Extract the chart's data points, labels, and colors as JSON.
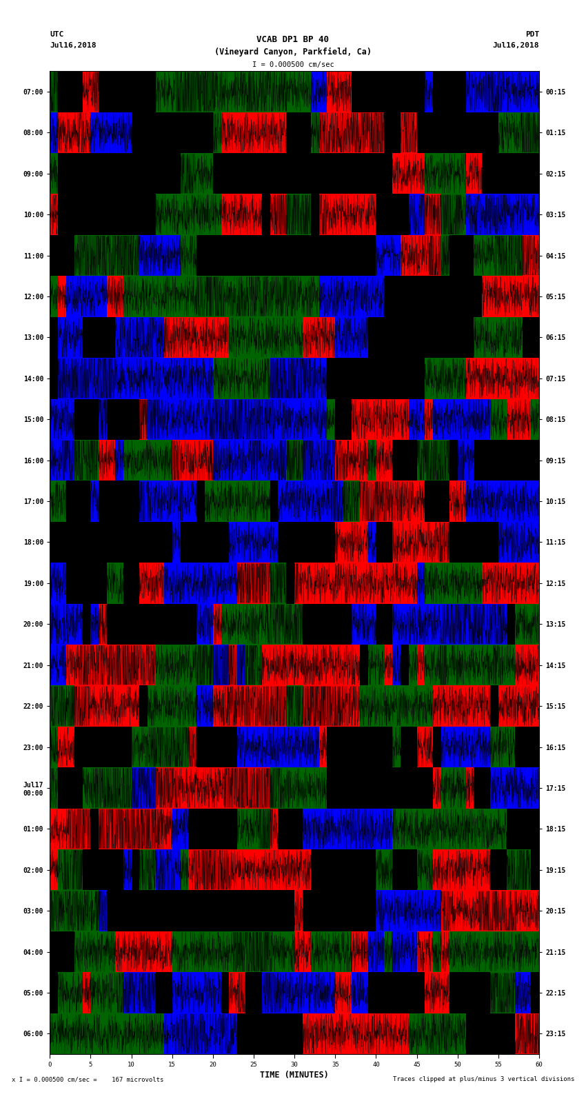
{
  "title_line1": "VCAB DP1 BP 40",
  "title_line2": "(Vineyard Canyon, Parkfield, Ca)",
  "scale_text": "I = 0.000500 cm/sec",
  "left_label_top": "UTC",
  "left_label_date": "Jul16,2018",
  "right_label_top": "PDT",
  "right_label_date": "Jul16,2018",
  "footer_left": "x I = 0.000500 cm/sec =    167 microvolts",
  "footer_right": "Traces clipped at plus/minus 3 vertical divisions",
  "xlabel": "TIME (MINUTES)",
  "left_times_utc": [
    "07:00",
    "08:00",
    "09:00",
    "10:00",
    "11:00",
    "12:00",
    "13:00",
    "14:00",
    "15:00",
    "16:00",
    "17:00",
    "18:00",
    "19:00",
    "20:00",
    "21:00",
    "22:00",
    "23:00",
    "Jul17\n00:00",
    "01:00",
    "02:00",
    "03:00",
    "04:00",
    "05:00",
    "06:00"
  ],
  "right_times_pdt": [
    "00:15",
    "01:15",
    "02:15",
    "03:15",
    "04:15",
    "05:15",
    "06:15",
    "07:15",
    "08:15",
    "09:15",
    "10:15",
    "11:15",
    "12:15",
    "13:15",
    "14:15",
    "15:15",
    "16:15",
    "17:15",
    "18:15",
    "19:15",
    "20:15",
    "21:15",
    "22:15",
    "23:15"
  ],
  "bg_color": "#ffffff",
  "plot_bg": "#000000",
  "num_traces": 24,
  "minutes_per_trace": 60,
  "colors": {
    "red": "#ff0000",
    "blue": "#0000ff",
    "green": "#006400",
    "black": "#000000"
  },
  "seed": 42
}
